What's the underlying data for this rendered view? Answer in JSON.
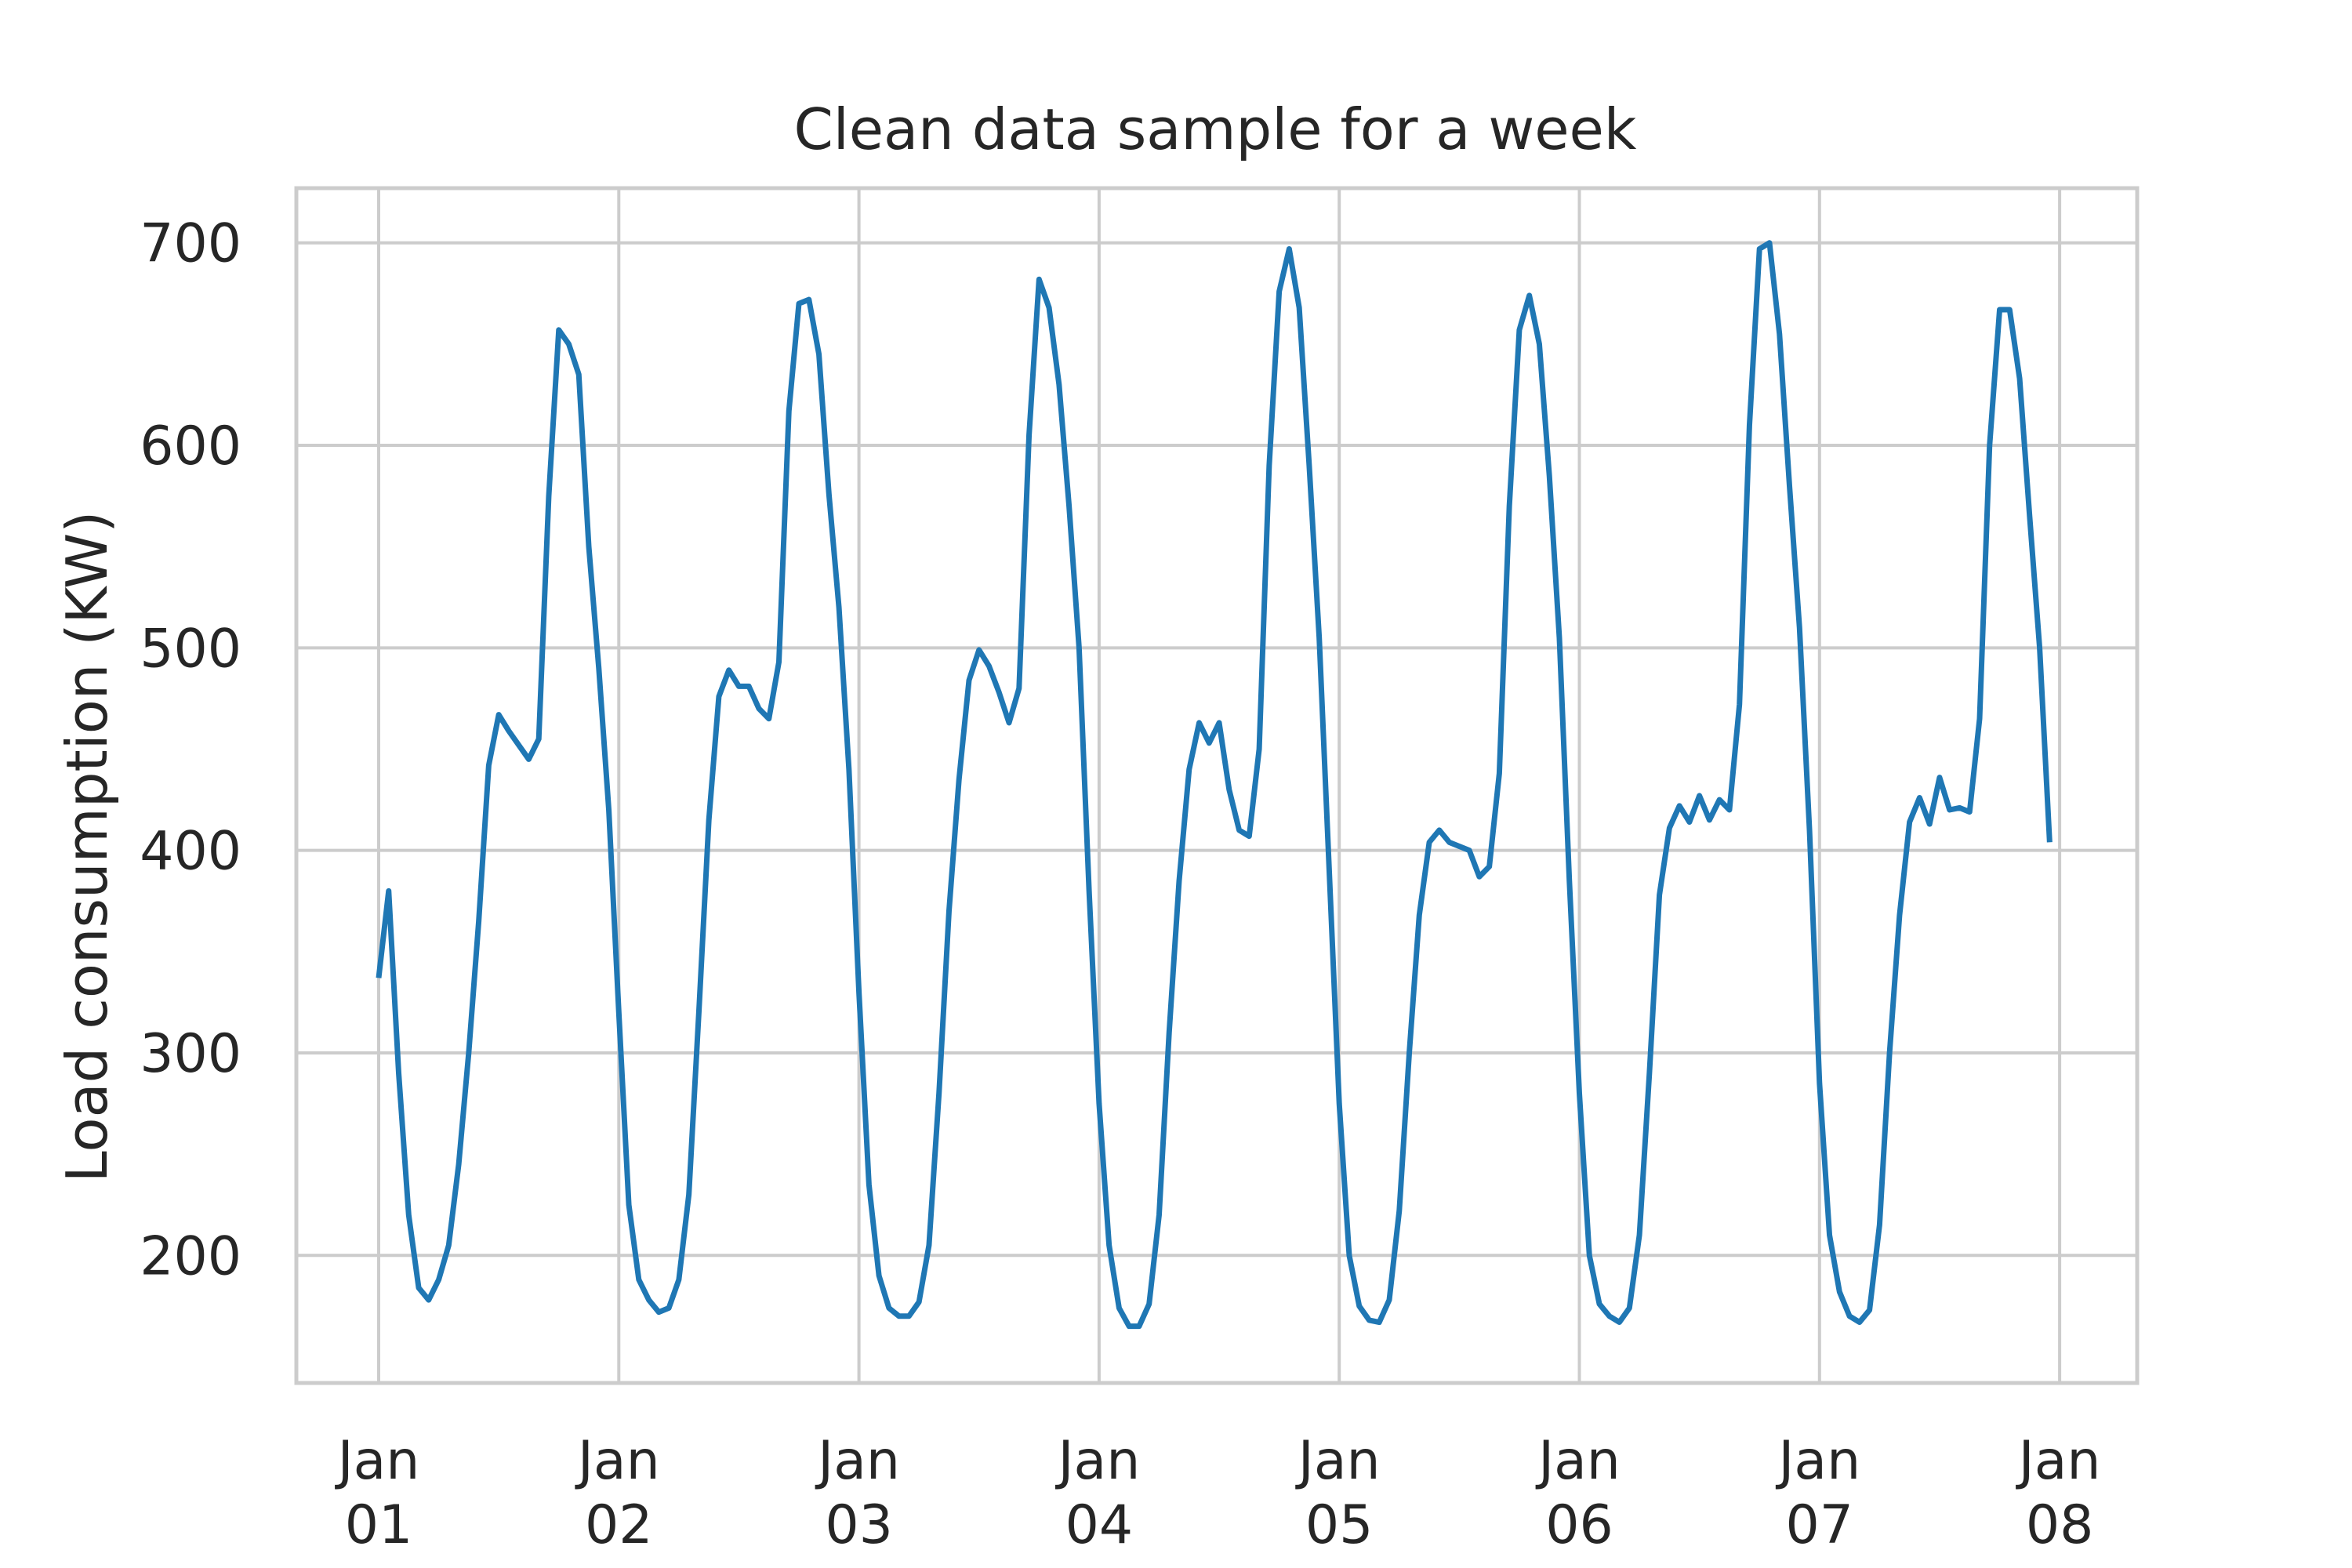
{
  "colors": {
    "line": "#1f77b4",
    "grid": "#cccccc",
    "text": "#262626",
    "background": "#ffffff"
  },
  "chart_data": {
    "type": "line",
    "title": "Clean data sample for a week",
    "xlabel": "",
    "ylabel": "Load consumption (KW)",
    "grid": true,
    "x_range": [
      "2017-01-01T00:00",
      "2017-01-08T00:00"
    ],
    "x_ticks": [
      {
        "month": "Jan",
        "day": "01"
      },
      {
        "month": "Jan",
        "day": "02"
      },
      {
        "month": "Jan",
        "day": "03"
      },
      {
        "month": "Jan",
        "day": "04"
      },
      {
        "month": "Jan",
        "day": "05"
      },
      {
        "month": "Jan",
        "day": "06"
      },
      {
        "month": "Jan",
        "day": "07"
      },
      {
        "month": "Jan",
        "day": "08"
      }
    ],
    "y_ticks": [
      "200",
      "300",
      "400",
      "500",
      "600",
      "700"
    ],
    "ylim": [
      137,
      727
    ],
    "sample_interval_hours": 1,
    "series": [
      {
        "values": [
          337,
          380,
          290,
          220,
          184,
          178,
          188,
          205,
          245,
          300,
          365,
          442,
          467,
          459,
          452,
          445,
          455,
          575,
          657,
          650,
          635,
          550,
          490,
          420,
          320,
          225,
          188,
          178,
          172,
          174,
          188,
          230,
          320,
          415,
          476,
          489,
          481,
          481,
          470,
          465,
          493,
          617,
          670,
          672,
          645,
          576,
          520,
          440,
          330,
          235,
          190,
          174,
          170,
          170,
          177,
          205,
          280,
          370,
          435,
          484,
          499,
          491,
          478,
          463,
          480,
          605,
          682,
          668,
          630,
          570,
          500,
          380,
          275,
          205,
          174,
          165,
          165,
          176,
          220,
          310,
          385,
          440,
          463,
          453,
          463,
          430,
          410,
          407,
          450,
          590,
          676,
          697,
          668,
          590,
          505,
          390,
          275,
          200,
          175,
          168,
          167,
          178,
          222,
          300,
          368,
          404,
          410,
          404,
          402,
          400,
          387,
          392,
          438,
          570,
          657,
          674,
          650,
          585,
          505,
          385,
          280,
          200,
          176,
          170,
          167,
          174,
          210,
          290,
          378,
          411,
          422,
          414,
          427,
          415,
          425,
          420,
          472,
          610,
          697,
          700,
          655,
          580,
          510,
          410,
          285,
          210,
          182,
          170,
          167,
          173,
          215,
          300,
          368,
          414,
          426,
          413,
          436,
          420,
          421,
          419,
          465,
          600,
          667,
          667,
          633,
          565,
          500,
          404
        ]
      }
    ]
  }
}
